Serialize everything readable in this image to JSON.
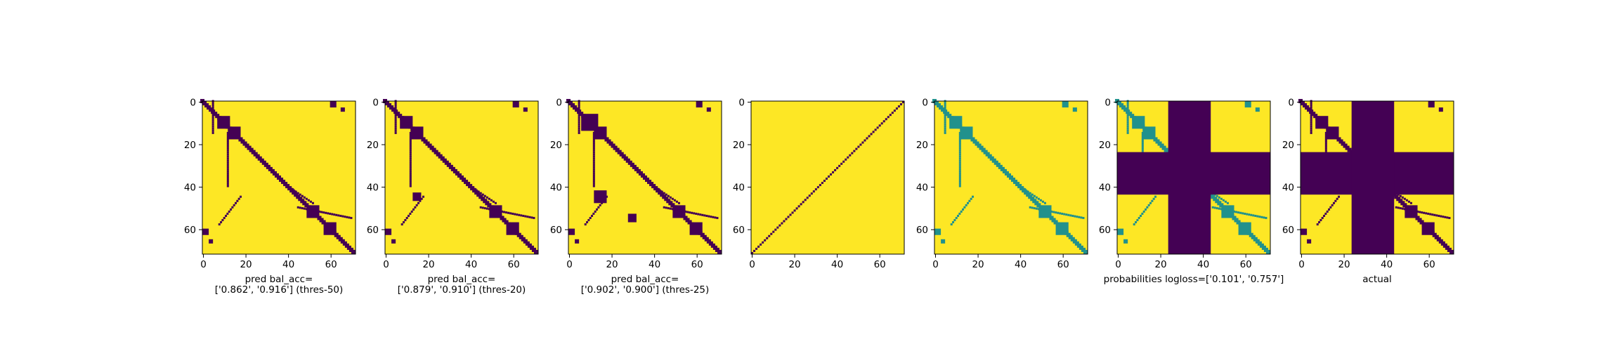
{
  "chart_data": [
    {
      "type": "heatmap",
      "caption_lines": [
        "pred bal_acc=",
        "['0.862', '0.916'] (thres-50)"
      ],
      "x_ticks": [
        0,
        20,
        40,
        60
      ],
      "y_ticks": [
        0,
        20,
        40,
        60
      ],
      "matrix_size": 72,
      "colormap": "viridis",
      "content": "binary",
      "pattern": {
        "diagonal": [
          [
            0,
            71,
            0,
            71,
            2
          ]
        ],
        "blobs": [
          [
            10,
            10,
            3
          ],
          [
            15,
            15,
            3
          ],
          [
            60,
            60,
            3
          ],
          [
            52,
            52,
            3
          ]
        ],
        "arms": [
          [
            0,
            5,
            15,
            5,
            1
          ],
          [
            15,
            12,
            40,
            12,
            1
          ],
          [
            40,
            40,
            48,
            52,
            1
          ],
          [
            50,
            45,
            55,
            70,
            1
          ],
          [
            45,
            18,
            58,
            8,
            1
          ]
        ],
        "edge_marks": [
          [
            0,
            60,
            3
          ],
          [
            60,
            0,
            3
          ],
          [
            3,
            65,
            2
          ],
          [
            65,
            3,
            2
          ]
        ]
      }
    },
    {
      "type": "heatmap",
      "caption_lines": [
        "pred bal_acc=",
        "['0.879', '0.910'] (thres-20)"
      ],
      "x_ticks": [
        0,
        20,
        40,
        60
      ],
      "y_ticks": [
        0,
        20,
        40,
        60
      ],
      "matrix_size": 72,
      "colormap": "viridis",
      "content": "binary",
      "pattern": {
        "diagonal": [
          [
            0,
            71,
            0,
            71,
            2
          ]
        ],
        "blobs": [
          [
            10,
            10,
            3
          ],
          [
            15,
            15,
            3
          ],
          [
            60,
            60,
            3
          ],
          [
            52,
            52,
            3
          ],
          [
            45,
            15,
            2
          ]
        ],
        "arms": [
          [
            0,
            5,
            15,
            5,
            1
          ],
          [
            15,
            12,
            40,
            12,
            1
          ],
          [
            40,
            40,
            48,
            52,
            1
          ],
          [
            50,
            45,
            55,
            70,
            1
          ],
          [
            45,
            18,
            58,
            8,
            1
          ]
        ],
        "edge_marks": [
          [
            0,
            60,
            3
          ],
          [
            60,
            0,
            3
          ],
          [
            3,
            65,
            2
          ],
          [
            65,
            3,
            2
          ]
        ]
      }
    },
    {
      "type": "heatmap",
      "caption_lines": [
        "pred bal_acc=",
        "['0.902', '0.900'] (thres-25)"
      ],
      "x_ticks": [
        0,
        20,
        40,
        60
      ],
      "y_ticks": [
        0,
        20,
        40,
        60
      ],
      "matrix_size": 72,
      "colormap": "viridis",
      "content": "binary",
      "pattern": {
        "diagonal": [
          [
            0,
            71,
            0,
            71,
            2
          ]
        ],
        "blobs": [
          [
            10,
            10,
            4
          ],
          [
            15,
            15,
            3
          ],
          [
            60,
            60,
            3
          ],
          [
            52,
            52,
            3
          ],
          [
            45,
            15,
            3
          ],
          [
            55,
            30,
            2
          ]
        ],
        "arms": [
          [
            0,
            5,
            15,
            5,
            1
          ],
          [
            15,
            12,
            40,
            12,
            1
          ],
          [
            40,
            40,
            48,
            52,
            1
          ],
          [
            50,
            45,
            55,
            70,
            1
          ],
          [
            45,
            18,
            58,
            8,
            1
          ]
        ],
        "edge_marks": [
          [
            0,
            60,
            3
          ],
          [
            60,
            0,
            3
          ],
          [
            3,
            65,
            2
          ],
          [
            65,
            3,
            2
          ]
        ]
      }
    },
    {
      "type": "heatmap",
      "caption_lines": [],
      "x_ticks": [
        0,
        20,
        40,
        60
      ],
      "y_ticks": [
        0,
        20,
        40,
        60
      ],
      "matrix_size": 72,
      "colormap": "viridis",
      "content": "anti_diagonal_line",
      "pattern": {}
    },
    {
      "type": "heatmap",
      "caption_lines": [],
      "x_ticks": [
        0,
        20,
        40,
        60
      ],
      "y_ticks": [
        0,
        20,
        40,
        60
      ],
      "matrix_size": 72,
      "colormap": "viridis",
      "content": "probability",
      "pattern": {
        "diagonal": [
          [
            0,
            71,
            0,
            71,
            2
          ]
        ],
        "blobs": [
          [
            10,
            10,
            3
          ],
          [
            15,
            15,
            3
          ],
          [
            60,
            60,
            3
          ],
          [
            52,
            52,
            3
          ]
        ],
        "arms": [
          [
            0,
            5,
            15,
            5,
            1
          ],
          [
            15,
            12,
            40,
            12,
            1
          ],
          [
            40,
            40,
            48,
            52,
            1
          ],
          [
            50,
            45,
            55,
            70,
            1
          ],
          [
            45,
            18,
            58,
            8,
            1
          ]
        ],
        "edge_marks": [
          [
            0,
            60,
            3
          ],
          [
            60,
            0,
            3
          ],
          [
            3,
            65,
            2
          ],
          [
            65,
            3,
            2
          ]
        ]
      }
    },
    {
      "type": "heatmap",
      "caption_lines": [
        "probabilities logloss=['0.101', '0.757']"
      ],
      "x_ticks": [
        0,
        20,
        40,
        60
      ],
      "y_ticks": [
        0,
        20,
        40,
        60
      ],
      "matrix_size": 72,
      "colormap": "viridis",
      "content": "probability_masked",
      "mask_range": [
        24,
        44
      ],
      "pattern": {
        "diagonal": [
          [
            0,
            71,
            0,
            71,
            2
          ]
        ],
        "blobs": [
          [
            10,
            10,
            3
          ],
          [
            15,
            15,
            3
          ],
          [
            60,
            60,
            3
          ],
          [
            52,
            52,
            3
          ]
        ],
        "arms": [
          [
            0,
            5,
            15,
            5,
            1
          ],
          [
            15,
            12,
            40,
            12,
            1
          ],
          [
            40,
            40,
            48,
            52,
            1
          ],
          [
            50,
            45,
            55,
            70,
            1
          ],
          [
            45,
            18,
            58,
            8,
            1
          ]
        ],
        "edge_marks": [
          [
            0,
            60,
            3
          ],
          [
            60,
            0,
            3
          ],
          [
            3,
            65,
            2
          ],
          [
            65,
            3,
            2
          ]
        ]
      }
    },
    {
      "type": "heatmap",
      "caption_lines": [
        "actual"
      ],
      "x_ticks": [
        0,
        20,
        40,
        60
      ],
      "y_ticks": [
        0,
        20,
        40,
        60
      ],
      "matrix_size": 72,
      "colormap": "viridis",
      "content": "binary_masked",
      "mask_range": [
        24,
        44
      ],
      "pattern": {
        "diagonal": [
          [
            0,
            71,
            0,
            71,
            2
          ]
        ],
        "blobs": [
          [
            10,
            10,
            3
          ],
          [
            15,
            15,
            3
          ],
          [
            60,
            60,
            3
          ],
          [
            52,
            52,
            3
          ]
        ],
        "arms": [
          [
            0,
            5,
            15,
            5,
            1
          ],
          [
            15,
            12,
            40,
            12,
            1
          ],
          [
            40,
            40,
            48,
            52,
            1
          ],
          [
            50,
            45,
            55,
            70,
            1
          ],
          [
            45,
            18,
            58,
            8,
            1
          ]
        ],
        "edge_marks": [
          [
            0,
            60,
            3
          ],
          [
            60,
            0,
            3
          ],
          [
            3,
            65,
            2
          ],
          [
            65,
            3,
            2
          ]
        ]
      }
    }
  ],
  "colors": {
    "contact": "#440154",
    "background": "#fde725",
    "mid_teal": "#21918c",
    "mid_green": "#5ec962"
  }
}
